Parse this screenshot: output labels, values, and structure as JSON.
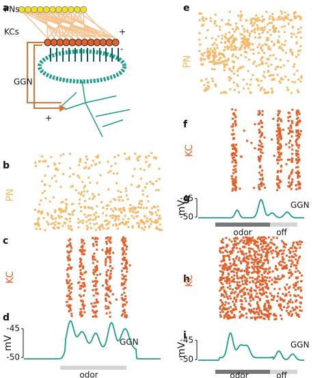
{
  "panels": [
    {
      "letter": "a",
      "texts": [
        "PNs",
        "KCs",
        "+",
        "-",
        "GGN",
        "+"
      ]
    },
    {
      "letter": "b",
      "ylabel": "PN"
    },
    {
      "letter": "c",
      "ylabel": "KC"
    },
    {
      "letter": "d",
      "ylabel": "mV",
      "yticks": [
        "-45",
        "-50"
      ],
      "trace": "GGN",
      "stimulus": [
        "odor"
      ]
    },
    {
      "letter": "e",
      "ylabel": "PN"
    },
    {
      "letter": "f",
      "ylabel": "KC"
    },
    {
      "letter": "g",
      "ylabel": "mV",
      "yticks": [
        "-45",
        "-50"
      ],
      "trace": "GGN",
      "stimulus": [
        "odor",
        "off"
      ]
    },
    {
      "letter": "h",
      "ylabel": "KC"
    },
    {
      "letter": "i",
      "ylabel": "mV",
      "yticks": [
        "-45",
        "-50"
      ],
      "trace": "GGN",
      "stimulus": [
        "odor",
        "off"
      ]
    }
  ]
}
